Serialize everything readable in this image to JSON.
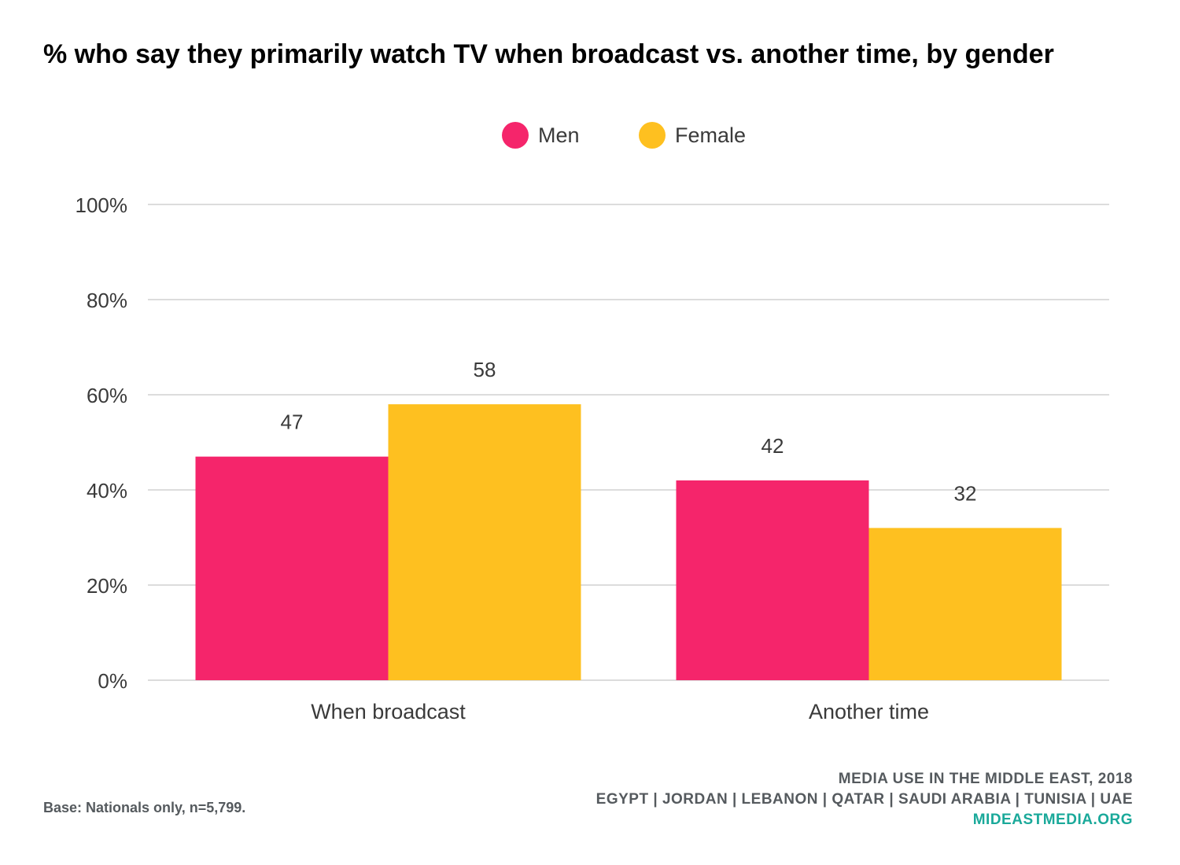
{
  "chart_data": {
    "type": "bar",
    "title": "% who say they primarily watch TV when broadcast vs. another time, by gender",
    "categories": [
      "When broadcast",
      "Another time"
    ],
    "series": [
      {
        "name": "Men",
        "values": [
          47,
          42
        ],
        "color": "#f5256b"
      },
      {
        "name": "Female",
        "values": [
          58,
          32
        ],
        "color": "#fec020"
      }
    ],
    "ylim": [
      0,
      100
    ],
    "yticks": [
      0,
      20,
      40,
      60,
      80,
      100
    ],
    "ytick_labels": [
      "0%",
      "20%",
      "40%",
      "60%",
      "80%",
      "100%"
    ],
    "grid": true,
    "legend_position": "top-center",
    "xlabel": "",
    "ylabel": ""
  },
  "legend": {
    "men": "Men",
    "female": "Female"
  },
  "footer": {
    "base": "Base: Nationals only, n=5,799.",
    "source_line1": "MEDIA USE IN THE MIDDLE EAST, 2018",
    "source_line2": "EGYPT | JORDAN | LEBANON | QATAR | SAUDI ARABIA | TUNISIA | UAE",
    "site": "MIDEASTMEDIA.ORG"
  }
}
